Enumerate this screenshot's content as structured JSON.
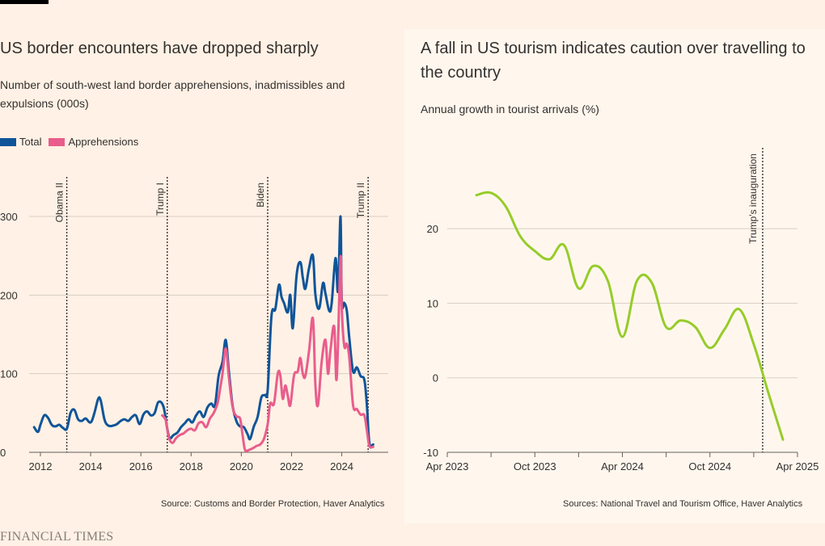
{
  "left": {
    "title": "US border encounters have dropped sharply",
    "subtitle": "Number of south-west land border apprehensions, inadmissibles and expulsions (000s)",
    "source": "Source: Customs and Border Protection, Haver Analytics"
  },
  "right": {
    "title": "A fall in US tourism indicates caution over travelling to the country",
    "subtitle": "Annual growth in tourist arrivals (%)",
    "source": "Sources: National Travel and Tourism Office, Haver Analytics"
  },
  "footer": {
    "brand": "FINANCIAL TIMES"
  },
  "chart_data": [
    {
      "type": "line",
      "title": "US border encounters have dropped sharply",
      "subtitle": "Number of south-west land border apprehensions, inadmissibles and expulsions (000s)",
      "xlabel": "",
      "ylabel": "",
      "xlim": [
        2011.55,
        2025.85
      ],
      "ylim": [
        0,
        300
      ],
      "x_ticks": [
        2012,
        2014,
        2016,
        2018,
        2020,
        2022,
        2024
      ],
      "y_ticks": [
        0,
        100,
        200,
        300
      ],
      "grid": true,
      "legend_position": "top-left",
      "annotations": [
        {
          "x": 2013.05,
          "label": "Obama II"
        },
        {
          "x": 2017.05,
          "label": "Trump I"
        },
        {
          "x": 2021.05,
          "label": "Biden"
        },
        {
          "x": 2025.05,
          "label": "Trump II"
        }
      ],
      "series": [
        {
          "name": "Total",
          "color": "#0f5499",
          "points": [
            [
              2011.75,
              32
            ],
            [
              2011.9,
              26
            ],
            [
              2012.0,
              35
            ],
            [
              2012.15,
              47
            ],
            [
              2012.3,
              44
            ],
            [
              2012.45,
              35
            ],
            [
              2012.6,
              33
            ],
            [
              2012.75,
              35
            ],
            [
              2012.9,
              31
            ],
            [
              2013.05,
              30
            ],
            [
              2013.2,
              50
            ],
            [
              2013.35,
              54
            ],
            [
              2013.5,
              42
            ],
            [
              2013.65,
              40
            ],
            [
              2013.8,
              43
            ],
            [
              2014.0,
              38
            ],
            [
              2014.15,
              50
            ],
            [
              2014.3,
              68
            ],
            [
              2014.4,
              66
            ],
            [
              2014.55,
              42
            ],
            [
              2014.7,
              34
            ],
            [
              2014.9,
              34
            ],
            [
              2015.05,
              36
            ],
            [
              2015.2,
              40
            ],
            [
              2015.35,
              42
            ],
            [
              2015.5,
              40
            ],
            [
              2015.65,
              45
            ],
            [
              2015.8,
              47
            ],
            [
              2015.95,
              36
            ],
            [
              2016.1,
              48
            ],
            [
              2016.25,
              52
            ],
            [
              2016.4,
              47
            ],
            [
              2016.55,
              50
            ],
            [
              2016.7,
              64
            ],
            [
              2016.9,
              58
            ],
            [
              2017.05,
              30
            ],
            [
              2017.15,
              18
            ],
            [
              2017.3,
              22
            ],
            [
              2017.45,
              25
            ],
            [
              2017.6,
              32
            ],
            [
              2017.75,
              37
            ],
            [
              2017.9,
              42
            ],
            [
              2018.05,
              38
            ],
            [
              2018.2,
              47
            ],
            [
              2018.35,
              52
            ],
            [
              2018.5,
              45
            ],
            [
              2018.65,
              57
            ],
            [
              2018.8,
              62
            ],
            [
              2018.95,
              60
            ],
            [
              2019.1,
              98
            ],
            [
              2019.25,
              115
            ],
            [
              2019.38,
              143
            ],
            [
              2019.5,
              105
            ],
            [
              2019.65,
              60
            ],
            [
              2019.8,
              40
            ],
            [
              2019.95,
              33
            ],
            [
              2020.1,
              32
            ],
            [
              2020.25,
              23
            ],
            [
              2020.35,
              17
            ],
            [
              2020.5,
              33
            ],
            [
              2020.65,
              45
            ],
            [
              2020.8,
              70
            ],
            [
              2020.95,
              73
            ],
            [
              2021.05,
              80
            ],
            [
              2021.2,
              173
            ],
            [
              2021.35,
              182
            ],
            [
              2021.5,
              213
            ],
            [
              2021.6,
              198
            ],
            [
              2021.7,
              190
            ],
            [
              2021.85,
              178
            ],
            [
              2021.95,
              200
            ],
            [
              2022.05,
              158
            ],
            [
              2022.2,
              225
            ],
            [
              2022.35,
              242
            ],
            [
              2022.45,
              222
            ],
            [
              2022.55,
              208
            ],
            [
              2022.7,
              235
            ],
            [
              2022.85,
              250
            ],
            [
              2022.95,
              200
            ],
            [
              2023.1,
              183
            ],
            [
              2023.25,
              215
            ],
            [
              2023.35,
              202
            ],
            [
              2023.5,
              180
            ],
            [
              2023.6,
              190
            ],
            [
              2023.75,
              247
            ],
            [
              2023.85,
              205
            ],
            [
              2023.95,
              300
            ],
            [
              2024.0,
              192
            ],
            [
              2024.1,
              190
            ],
            [
              2024.2,
              180
            ],
            [
              2024.3,
              145
            ],
            [
              2024.45,
              103
            ],
            [
              2024.6,
              108
            ],
            [
              2024.75,
              97
            ],
            [
              2024.9,
              92
            ],
            [
              2025.0,
              60
            ],
            [
              2025.1,
              12
            ],
            [
              2025.25,
              10
            ]
          ]
        },
        {
          "name": "Apprehensions",
          "color": "#e95d8c",
          "points": [
            [
              2016.85,
              47
            ],
            [
              2017.0,
              40
            ],
            [
              2017.1,
              20
            ],
            [
              2017.25,
              12
            ],
            [
              2017.4,
              18
            ],
            [
              2017.55,
              22
            ],
            [
              2017.7,
              24
            ],
            [
              2017.85,
              28
            ],
            [
              2018.0,
              30
            ],
            [
              2018.15,
              28
            ],
            [
              2018.3,
              37
            ],
            [
              2018.45,
              38
            ],
            [
              2018.6,
              32
            ],
            [
              2018.75,
              43
            ],
            [
              2018.9,
              50
            ],
            [
              2019.05,
              62
            ],
            [
              2019.15,
              80
            ],
            [
              2019.25,
              100
            ],
            [
              2019.38,
              132
            ],
            [
              2019.5,
              97
            ],
            [
              2019.65,
              58
            ],
            [
              2019.8,
              46
            ],
            [
              2019.95,
              43
            ],
            [
              2020.05,
              22
            ],
            [
              2020.15,
              3
            ],
            [
              2020.3,
              3
            ],
            [
              2020.45,
              5
            ],
            [
              2020.6,
              8
            ],
            [
              2020.75,
              10
            ],
            [
              2020.9,
              17
            ],
            [
              2021.05,
              36
            ],
            [
              2021.15,
              62
            ],
            [
              2021.3,
              62
            ],
            [
              2021.45,
              100
            ],
            [
              2021.55,
              98
            ],
            [
              2021.65,
              68
            ],
            [
              2021.75,
              85
            ],
            [
              2021.85,
              72
            ],
            [
              2021.95,
              60
            ],
            [
              2022.1,
              98
            ],
            [
              2022.25,
              103
            ],
            [
              2022.35,
              120
            ],
            [
              2022.45,
              100
            ],
            [
              2022.55,
              97
            ],
            [
              2022.7,
              130
            ],
            [
              2022.85,
              170
            ],
            [
              2022.95,
              85
            ],
            [
              2023.05,
              60
            ],
            [
              2023.2,
              115
            ],
            [
              2023.35,
              143
            ],
            [
              2023.45,
              100
            ],
            [
              2023.55,
              130
            ],
            [
              2023.7,
              160
            ],
            [
              2023.8,
              94
            ],
            [
              2023.95,
              247
            ],
            [
              2024.0,
              182
            ],
            [
              2024.1,
              135
            ],
            [
              2024.2,
              138
            ],
            [
              2024.3,
              120
            ],
            [
              2024.45,
              60
            ],
            [
              2024.6,
              55
            ],
            [
              2024.75,
              48
            ],
            [
              2024.9,
              47
            ],
            [
              2025.0,
              28
            ],
            [
              2025.1,
              8
            ],
            [
              2025.25,
              7
            ]
          ]
        }
      ]
    },
    {
      "type": "line",
      "title": "A fall in US tourism indicates caution over travelling to the country",
      "subtitle": "Annual growth in tourist arrivals (%)",
      "xlabel": "",
      "ylabel": "",
      "xlim": [
        "2023-04",
        "2025-04"
      ],
      "ylim": [
        -10,
        25
      ],
      "x_ticks": [
        "Apr 2023",
        "Oct 2023",
        "Apr 2024",
        "Oct 2024",
        "Apr 2025"
      ],
      "y_ticks": [
        -10,
        0,
        10,
        20
      ],
      "grid": true,
      "annotations": [
        {
          "x": "2025-01-20",
          "label": "Trump's inauguration"
        }
      ],
      "series": [
        {
          "name": "",
          "color": "#96cc28",
          "points": [
            [
              "2023-06-01",
              24.5
            ],
            [
              "2023-07-01",
              24.8
            ],
            [
              "2023-08-01",
              23.0
            ],
            [
              "2023-09-01",
              19.0
            ],
            [
              "2023-10-01",
              17.0
            ],
            [
              "2023-11-01",
              15.9
            ],
            [
              "2023-12-01",
              17.8
            ],
            [
              "2024-01-01",
              12.0
            ],
            [
              "2024-02-01",
              15.0
            ],
            [
              "2024-03-01",
              13.0
            ],
            [
              "2024-04-01",
              5.5
            ],
            [
              "2024-05-01",
              13.0
            ],
            [
              "2024-06-01",
              12.8
            ],
            [
              "2024-07-01",
              6.8
            ],
            [
              "2024-08-01",
              7.7
            ],
            [
              "2024-09-01",
              6.8
            ],
            [
              "2024-10-01",
              4.0
            ],
            [
              "2024-11-01",
              6.5
            ],
            [
              "2024-12-01",
              9.2
            ],
            [
              "2025-01-01",
              4.5
            ],
            [
              "2025-02-01",
              -2.0
            ],
            [
              "2025-03-01",
              -8.3
            ]
          ]
        }
      ]
    }
  ]
}
